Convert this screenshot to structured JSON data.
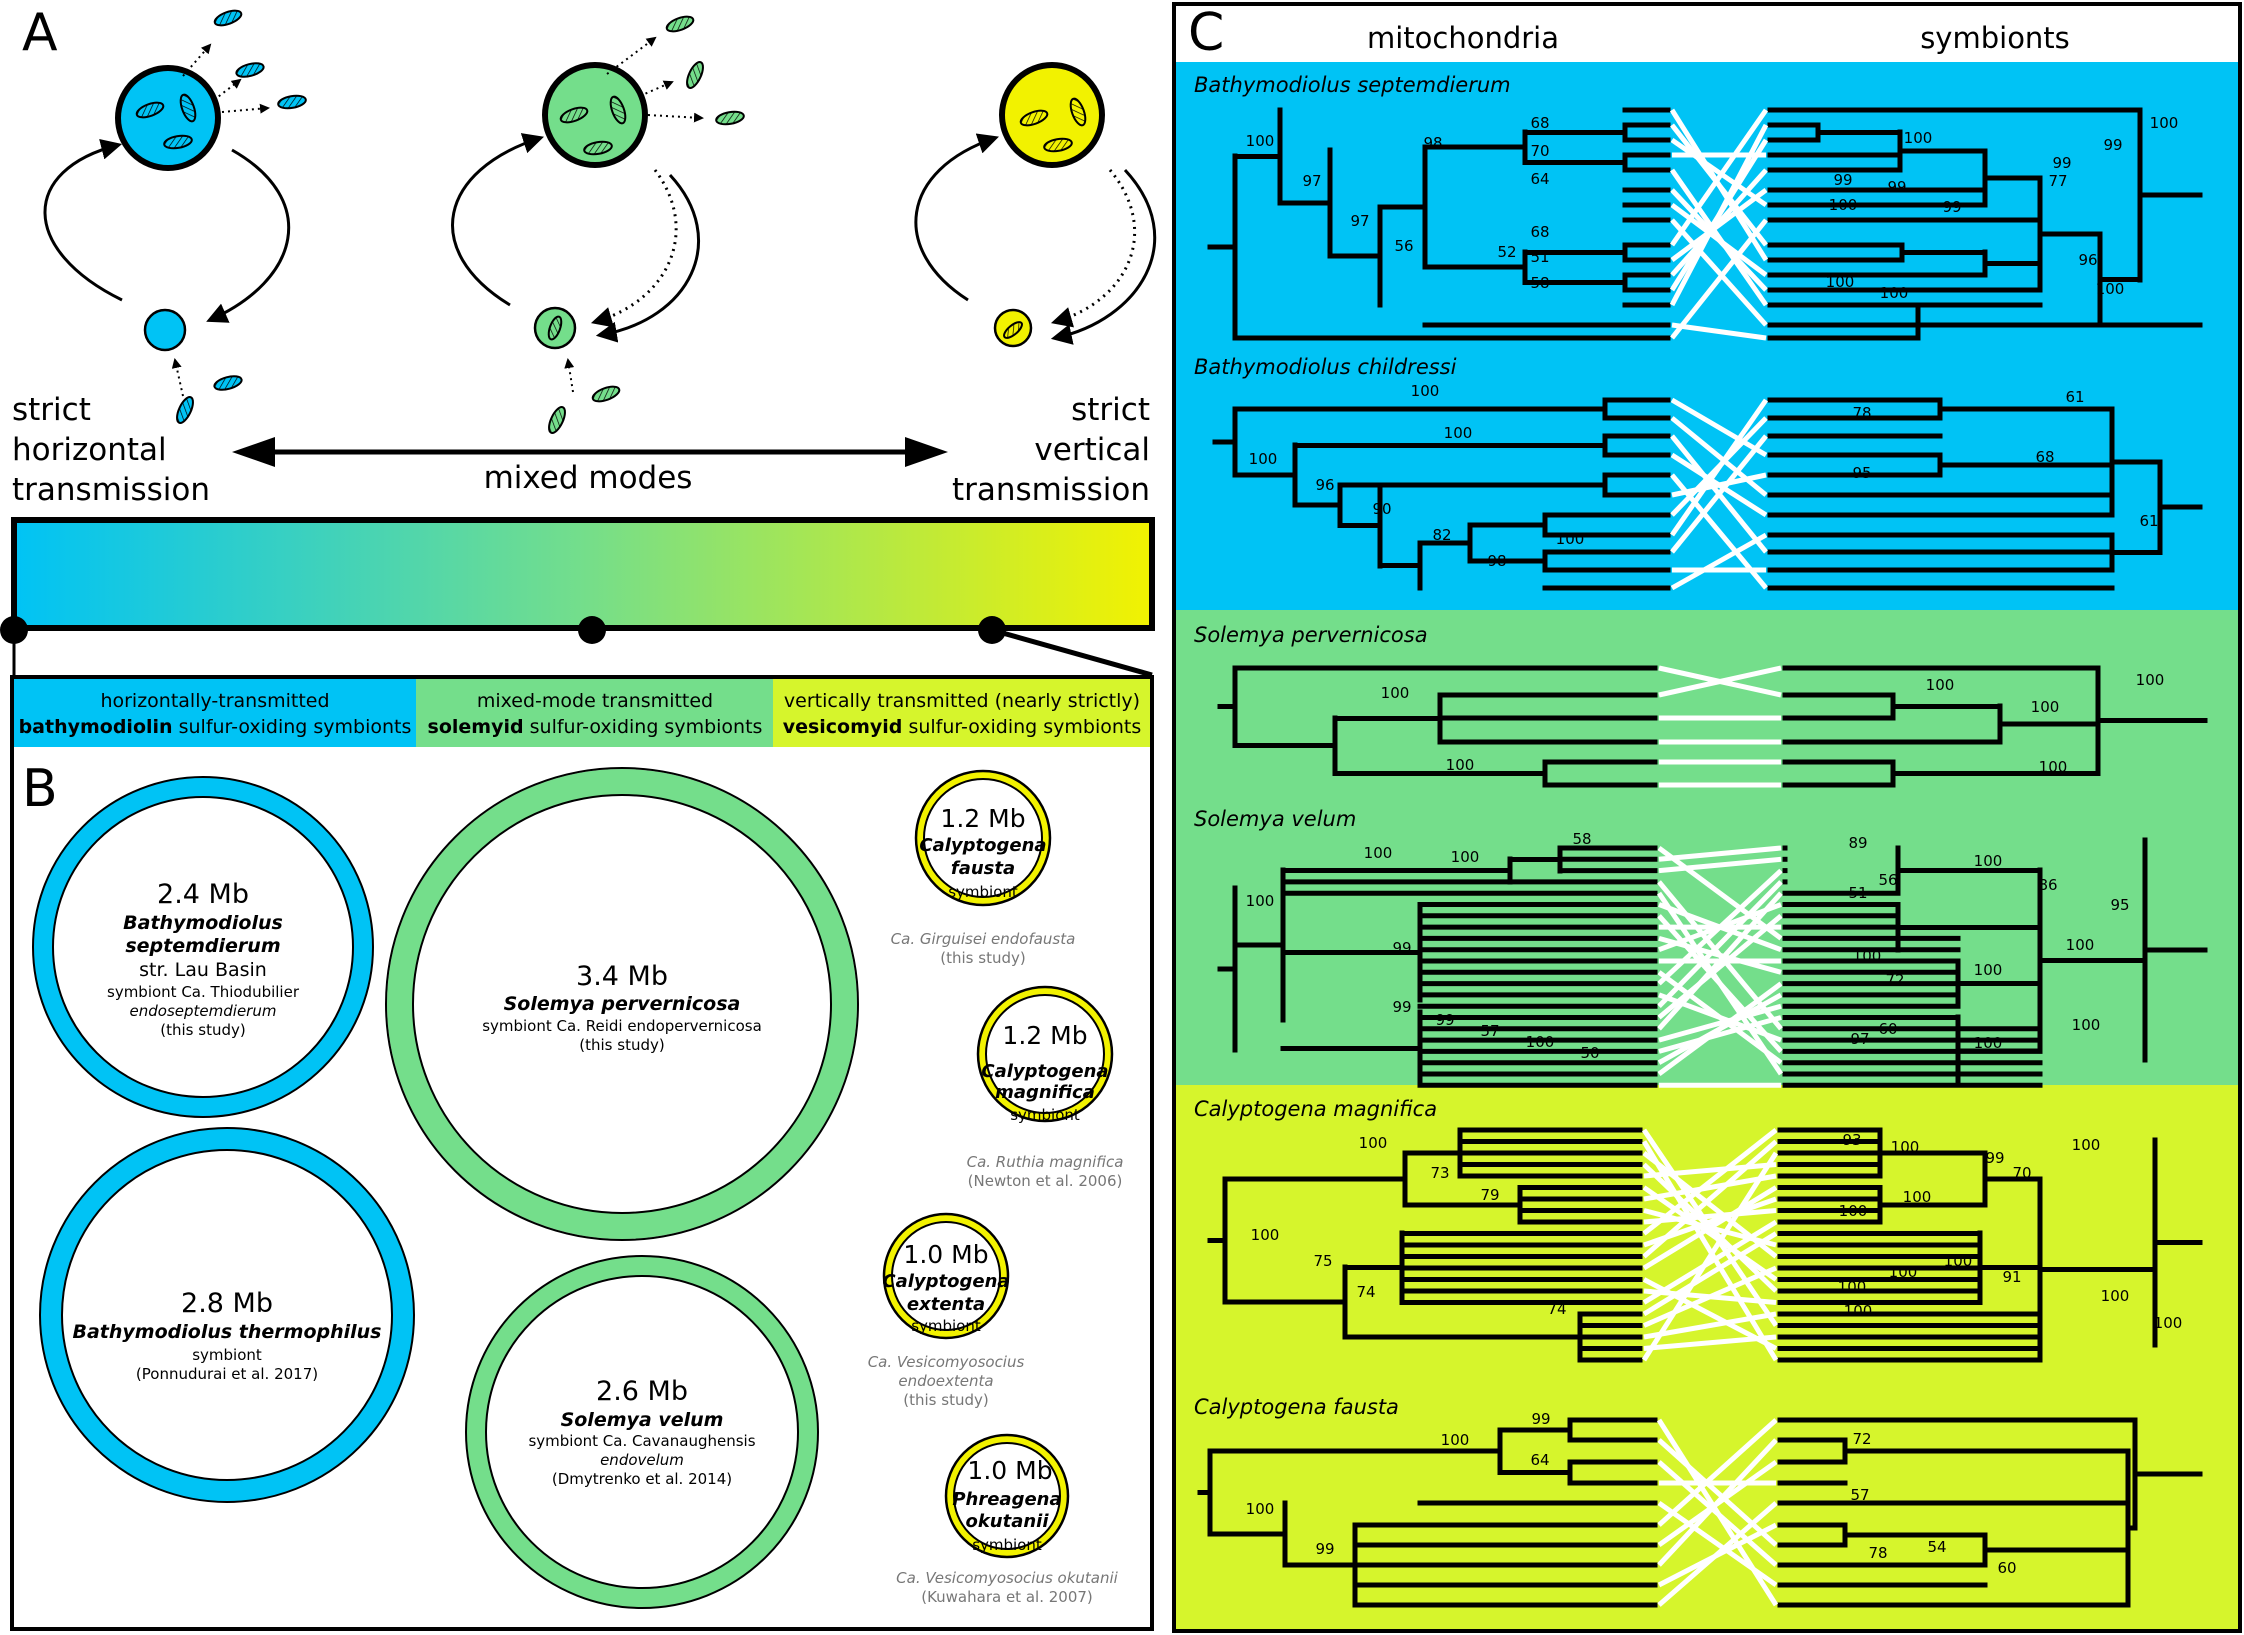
{
  "panel_a": {
    "letter": "A",
    "left_label": [
      "strict",
      "horizontal",
      "transmission"
    ],
    "middle_label": "mixed modes",
    "right_label": [
      "strict",
      "vertical",
      "transmission"
    ],
    "colors": {
      "horizontal": "#00c3f5",
      "mixed": "#74de8b",
      "vertical": "#f2f200"
    },
    "categories": [
      {
        "line1": "horizontally-transmitted",
        "bold": "bathymodiolin",
        "rest": " sulfur-oxiding symbionts",
        "color": "#00c3f5"
      },
      {
        "line1": "mixed-mode transmitted",
        "bold": "solemyid",
        "rest": " sulfur-oxiding symbionts",
        "color": "#74de8b"
      },
      {
        "line1": "vertically transmitted (nearly strictly)",
        "bold": "vesicomyid",
        "rest": " sulfur-oxiding symbionts",
        "color": "#d6f52c"
      }
    ]
  },
  "panel_b": {
    "letter": "B",
    "genomes": [
      {
        "size": "2.4 Mb",
        "host": "Bathymodiolus septemdierum",
        "host_lines": [
          "Bathymodiolus",
          "septemdierum"
        ],
        "extra": [
          "str. Lau Basin",
          "symbiont Ca. Thiodubilier",
          "endoseptemdierum",
          "(this study)"
        ],
        "color": "#00c3f5"
      },
      {
        "size": "2.8 Mb",
        "host": "Bathymodiolus thermophilus",
        "host_lines": [
          "Bathymodiolus thermophilus"
        ],
        "extra": [
          "symbiont",
          "(Ponnudurai et al. 2017)"
        ],
        "color": "#00c3f5"
      },
      {
        "size": "3.4 Mb",
        "host": "Solemya pervernicosa",
        "host_lines": [
          "Solemya pervernicosa"
        ],
        "extra": [
          "symbiont Ca. Reidi endopervernicosa",
          "(this study)"
        ],
        "color": "#74de8b"
      },
      {
        "size": "2.6 Mb",
        "host": "Solemya velum",
        "host_lines": [
          "Solemya velum"
        ],
        "extra": [
          "symbiont Ca. Cavanaughensis",
          "endovelum",
          "(Dmytrenko et al. 2014)"
        ],
        "color": "#74de8b"
      },
      {
        "size": "1.2 Mb",
        "host": "Calyptogena fausta",
        "host_lines": [
          "Calyptogena",
          "fausta"
        ],
        "extra": [
          "symbiont"
        ],
        "below": [
          "Ca. Girguisei endofausta",
          "(this study)"
        ],
        "color": "#f2f200"
      },
      {
        "size": "1.2 Mb",
        "host": "Calyptogena magnifica",
        "host_lines": [
          "Calyptogena",
          "magnifica"
        ],
        "extra": [
          "symbiont"
        ],
        "below": [
          "Ca. Ruthia magnifica",
          "(Newton et al. 2006)"
        ],
        "color": "#f2f200"
      },
      {
        "size": "1.0 Mb",
        "host": "Calyptogena extenta",
        "host_lines": [
          "Calyptogena",
          "extenta"
        ],
        "extra": [
          "symbiont"
        ],
        "below": [
          "Ca. Vesicomyosocius",
          "endoextenta",
          "(this study)"
        ],
        "color": "#f2f200"
      },
      {
        "size": "1.0 Mb",
        "host": "Phreagena okutanii",
        "host_lines": [
          "Phreagena",
          "okutanii"
        ],
        "extra": [
          "symbiont"
        ],
        "below": [
          "Ca. Vesicomyosocius okutanii",
          "(Kuwahara et al. 2007)"
        ],
        "color": "#f2f200"
      }
    ]
  },
  "panel_c": {
    "letter": "C",
    "left_header": "mitochondria",
    "right_header": "symbionts",
    "blocks": [
      {
        "species": "Bathymodiolus septemdierum",
        "color": "#00c3f5",
        "mito_support": [
          "100",
          "98",
          "97",
          "97",
          "56",
          "52",
          "68",
          "70",
          "64",
          "68",
          "51",
          "58"
        ],
        "sym_support": [
          "100",
          "100",
          "99",
          "99",
          "99",
          "77",
          "99",
          "100",
          "99",
          "100",
          "96",
          "100",
          "100"
        ]
      },
      {
        "species": "Bathymodiolus childressi",
        "color": "#00c3f5",
        "mito_support": [
          "100",
          "100",
          "100",
          "96",
          "90",
          "82",
          "100",
          "98"
        ],
        "sym_support": [
          "78",
          "61",
          "95",
          "68",
          "61"
        ]
      },
      {
        "species": "Solemya pervernicosa",
        "color": "#74de8b",
        "mito_support": [
          "100",
          "100"
        ],
        "sym_support": [
          "100",
          "100",
          "100",
          "100"
        ]
      },
      {
        "species": "Solemya velum",
        "color": "#74de8b",
        "mito_support": [
          "58",
          "100",
          "100",
          "100",
          "99",
          "99",
          "99",
          "57",
          "100",
          "50"
        ],
        "sym_support": [
          "89",
          "100",
          "56",
          "51",
          "86",
          "95",
          "100",
          "100",
          "72",
          "100",
          "60",
          "97",
          "100",
          "100"
        ]
      },
      {
        "species": "Calyptogena magnifica",
        "color": "#d6f52c",
        "mito_support": [
          "100",
          "73",
          "79",
          "100",
          "75",
          "74",
          "74"
        ],
        "sym_support": [
          "93",
          "100",
          "99",
          "70",
          "100",
          "100",
          "100",
          "100",
          "91",
          "100",
          "100",
          "100",
          "100",
          "100"
        ]
      },
      {
        "species": "Calyptogena fausta",
        "color": "#d6f52c",
        "mito_support": [
          "99",
          "100",
          "64",
          "100",
          "99"
        ],
        "sym_support": [
          "72",
          "57",
          "78",
          "54",
          "60"
        ]
      }
    ]
  }
}
